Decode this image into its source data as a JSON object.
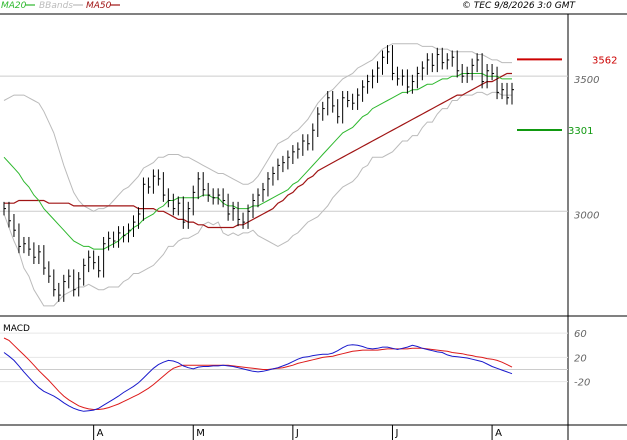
{
  "header": {
    "legend": [
      {
        "name": "MA20",
        "color": "#2eb82e"
      },
      {
        "name": "BBands",
        "color": "#bbbbbb"
      },
      {
        "name": "MA50",
        "color": "#a01414"
      }
    ],
    "source": "© TEC 9/8/2026 3:0 GMT"
  },
  "colors": {
    "price": "#000000",
    "ma20": "#2eb82e",
    "ma50": "#a01414",
    "bbands": "#bbbbbb",
    "macd_line": "#1a1acc",
    "macd_signal": "#dd1a1a",
    "resistance": "#cc0000",
    "support": "#119911",
    "grid": "#cccccc"
  },
  "chart_data": [
    {
      "type": "ohlc",
      "ylim": [
        2620,
        3730
      ],
      "yticks": [
        3000,
        3500
      ],
      "xtick_labels": [
        "A",
        "M",
        "J",
        "J",
        "A"
      ],
      "xtick_index": [
        18,
        38,
        58,
        78,
        98
      ],
      "n_bars": 103,
      "levels": {
        "resistance": 3562,
        "support": 3301
      },
      "series": {
        "close": [
          3010,
          2965,
          2930,
          2870,
          2880,
          2860,
          2830,
          2850,
          2790,
          2760,
          2710,
          2690,
          2740,
          2760,
          2710,
          2750,
          2800,
          2830,
          2810,
          2780,
          2880,
          2900,
          2890,
          2920,
          2910,
          2930,
          2960,
          2990,
          3100,
          3090,
          3130,
          3120,
          3060,
          3040,
          3010,
          3030,
          2960,
          3010,
          3070,
          3120,
          3080,
          3060,
          3050,
          3060,
          3040,
          2990,
          3010,
          2970,
          2960,
          3000,
          3040,
          3060,
          3080,
          3120,
          3140,
          3170,
          3180,
          3200,
          3220,
          3230,
          3260,
          3250,
          3300,
          3360,
          3380,
          3420,
          3390,
          3350,
          3420,
          3410,
          3400,
          3430,
          3460,
          3480,
          3500,
          3530,
          3570,
          3590,
          3510,
          3490,
          3500,
          3460,
          3480,
          3510,
          3530,
          3560,
          3540,
          3580,
          3550,
          3560,
          3570,
          3520,
          3500,
          3510,
          3540,
          3560,
          3480,
          3520,
          3510,
          3440,
          3450,
          3420,
          3450
        ],
        "ma20": [
          3200,
          3180,
          3160,
          3140,
          3110,
          3090,
          3060,
          3040,
          3010,
          2990,
          2970,
          2950,
          2930,
          2910,
          2890,
          2880,
          2870,
          2870,
          2860,
          2860,
          2860,
          2870,
          2880,
          2890,
          2910,
          2920,
          2940,
          2950,
          2970,
          2980,
          2990,
          3010,
          3020,
          3040,
          3040,
          3050,
          3050,
          3050,
          3050,
          3050,
          3060,
          3060,
          3050,
          3050,
          3030,
          3020,
          3020,
          3010,
          3010,
          3010,
          3020,
          3020,
          3030,
          3040,
          3050,
          3060,
          3070,
          3080,
          3100,
          3110,
          3130,
          3150,
          3170,
          3190,
          3210,
          3230,
          3250,
          3270,
          3290,
          3300,
          3310,
          3330,
          3350,
          3360,
          3380,
          3390,
          3400,
          3410,
          3420,
          3430,
          3440,
          3440,
          3450,
          3450,
          3460,
          3470,
          3470,
          3480,
          3490,
          3490,
          3500,
          3500,
          3510,
          3510,
          3510,
          3510,
          3510,
          3500,
          3500,
          3500,
          3490,
          3490,
          3490
        ],
        "ma50": [
          3030,
          3030,
          3030,
          3040,
          3040,
          3040,
          3040,
          3040,
          3040,
          3030,
          3030,
          3030,
          3030,
          3030,
          3020,
          3020,
          3020,
          3020,
          3020,
          3020,
          3020,
          3020,
          3020,
          3020,
          3020,
          3020,
          3020,
          3010,
          3010,
          3010,
          3010,
          3000,
          3000,
          2990,
          2980,
          2970,
          2970,
          2960,
          2960,
          2950,
          2950,
          2940,
          2940,
          2940,
          2940,
          2940,
          2940,
          2950,
          2950,
          2960,
          2970,
          2980,
          2990,
          3000,
          3010,
          3030,
          3040,
          3060,
          3070,
          3090,
          3100,
          3120,
          3130,
          3150,
          3160,
          3170,
          3180,
          3190,
          3200,
          3210,
          3220,
          3230,
          3240,
          3250,
          3260,
          3270,
          3280,
          3290,
          3300,
          3310,
          3320,
          3330,
          3340,
          3350,
          3360,
          3370,
          3380,
          3390,
          3400,
          3410,
          3420,
          3430,
          3430,
          3440,
          3450,
          3460,
          3470,
          3480,
          3480,
          3490,
          3500,
          3510,
          3510
        ],
        "bb_upper": [
          3410,
          3420,
          3430,
          3430,
          3430,
          3420,
          3410,
          3400,
          3370,
          3330,
          3290,
          3230,
          3170,
          3120,
          3070,
          3040,
          3020,
          3010,
          3000,
          3010,
          3010,
          3020,
          3040,
          3060,
          3080,
          3090,
          3110,
          3130,
          3160,
          3170,
          3180,
          3200,
          3200,
          3210,
          3210,
          3210,
          3200,
          3200,
          3190,
          3180,
          3170,
          3160,
          3150,
          3140,
          3140,
          3130,
          3120,
          3110,
          3100,
          3100,
          3110,
          3130,
          3160,
          3190,
          3220,
          3250,
          3260,
          3270,
          3290,
          3300,
          3320,
          3340,
          3370,
          3400,
          3420,
          3440,
          3450,
          3470,
          3490,
          3500,
          3510,
          3530,
          3540,
          3550,
          3560,
          3580,
          3600,
          3610,
          3620,
          3620,
          3620,
          3620,
          3620,
          3620,
          3610,
          3610,
          3610,
          3600,
          3600,
          3600,
          3590,
          3590,
          3590,
          3590,
          3590,
          3580,
          3580,
          3570,
          3560,
          3560,
          3550,
          3550,
          3550
        ],
        "bb_lower": [
          2990,
          2940,
          2890,
          2850,
          2790,
          2760,
          2710,
          2680,
          2650,
          2650,
          2650,
          2670,
          2690,
          2700,
          2710,
          2720,
          2720,
          2730,
          2720,
          2710,
          2710,
          2720,
          2720,
          2720,
          2740,
          2750,
          2770,
          2770,
          2780,
          2790,
          2800,
          2820,
          2840,
          2870,
          2870,
          2890,
          2900,
          2900,
          2910,
          2920,
          2950,
          2960,
          2950,
          2960,
          2920,
          2910,
          2920,
          2910,
          2920,
          2920,
          2930,
          2910,
          2900,
          2890,
          2880,
          2870,
          2880,
          2890,
          2910,
          2920,
          2940,
          2960,
          2970,
          2980,
          3000,
          3020,
          3050,
          3070,
          3090,
          3100,
          3110,
          3130,
          3160,
          3170,
          3200,
          3200,
          3200,
          3210,
          3220,
          3240,
          3260,
          3260,
          3280,
          3280,
          3310,
          3330,
          3330,
          3360,
          3380,
          3380,
          3410,
          3410,
          3430,
          3430,
          3430,
          3440,
          3440,
          3430,
          3440,
          3440,
          3430,
          3430,
          3430
        ]
      }
    },
    {
      "type": "line",
      "title": "MACD",
      "ylim": [
        -90,
        85
      ],
      "yticks": [
        60,
        20,
        -20
      ],
      "ytick_labels": [
        "60",
        "20",
        "-20"
      ],
      "zero_line": 0,
      "series": [
        {
          "values": [
            28,
            22,
            15,
            6,
            -4,
            -13,
            -22,
            -30,
            -36,
            -40,
            -44,
            -49,
            -55,
            -60,
            -64,
            -67,
            -69,
            -68,
            -67,
            -64,
            -59,
            -54,
            -49,
            -44,
            -38,
            -33,
            -28,
            -22,
            -14,
            -6,
            2,
            8,
            12,
            15,
            14,
            11,
            6,
            3,
            1,
            4,
            5,
            5,
            6,
            6,
            7,
            6,
            5,
            3,
            1,
            -1,
            -3,
            -4,
            -3,
            -1,
            1,
            3,
            6,
            9,
            13,
            17,
            20,
            21,
            23,
            24,
            25,
            25,
            27,
            31,
            36,
            40,
            41,
            40,
            38,
            35,
            34,
            35,
            37,
            37,
            35,
            33,
            35,
            37,
            40,
            38,
            35,
            33,
            31,
            29,
            28,
            24,
            22,
            21,
            20,
            19,
            17,
            15,
            13,
            9,
            5,
            2,
            -1,
            -4,
            -7
          ]
        },
        {
          "values": [
            52,
            48,
            40,
            32,
            24,
            16,
            7,
            -2,
            -10,
            -18,
            -27,
            -36,
            -44,
            -50,
            -55,
            -60,
            -63,
            -65,
            -66,
            -66,
            -65,
            -63,
            -60,
            -57,
            -53,
            -49,
            -45,
            -41,
            -36,
            -31,
            -25,
            -18,
            -11,
            -4,
            2,
            5,
            7,
            7,
            7,
            7,
            7,
            7,
            7,
            7,
            7,
            7,
            6,
            5,
            4,
            3,
            2,
            1,
            0,
            0,
            1,
            2,
            3,
            5,
            7,
            10,
            12,
            14,
            16,
            18,
            20,
            21,
            22,
            24,
            26,
            28,
            30,
            31,
            32,
            32,
            32,
            32,
            33,
            34,
            34,
            34,
            34,
            34,
            35,
            35,
            35,
            34,
            33,
            32,
            31,
            30,
            28,
            27,
            26,
            24,
            23,
            21,
            20,
            18,
            17,
            15,
            12,
            8,
            4
          ]
        }
      ]
    }
  ]
}
